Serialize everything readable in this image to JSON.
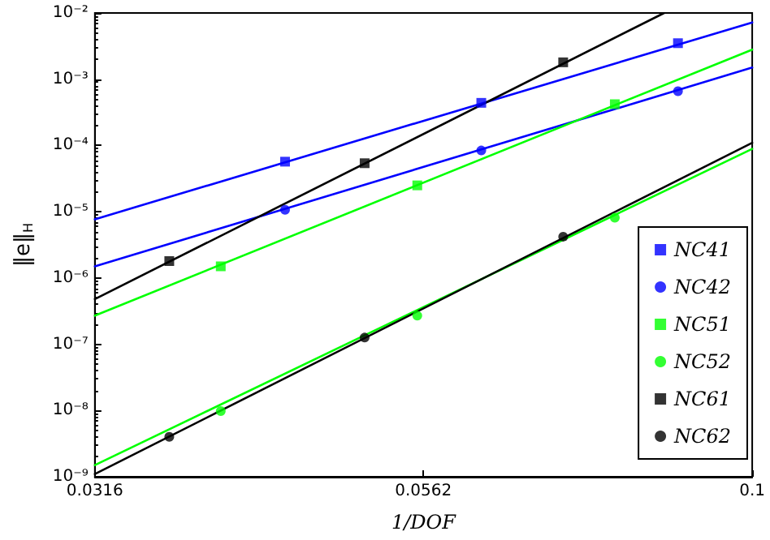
{
  "chart_data": {
    "type": "scatter",
    "xlabel": "1/DOF",
    "ylabel": "‖e‖$_{H}$",
    "log": "xy",
    "grid": false,
    "legend": "bottom right",
    "xlim": [
      0.0316,
      0.1
    ],
    "xticks": [
      0.0316,
      0.0562,
      0.1
    ],
    "ylim": [
      1e-09,
      0.01
    ],
    "yticks": [
      {
        "value": 1e-09,
        "label": "10⁻⁹"
      },
      {
        "value": 1e-08,
        "label": "10⁻⁸"
      },
      {
        "value": 1e-07,
        "label": "10⁻⁷"
      },
      {
        "value": 1e-06,
        "label": "10⁻⁶"
      },
      {
        "value": 1e-05,
        "label": "10⁻⁵"
      },
      {
        "value": 0.0001,
        "label": "10⁻⁴"
      },
      {
        "value": 0.001,
        "label": "10⁻³"
      },
      {
        "value": 0.01,
        "label": "10⁻²"
      }
    ],
    "series": [
      {
        "name": "NC41",
        "type": "scatter",
        "marker": "square",
        "color": "#0000ff",
        "x": [
          0.0441,
          0.0622,
          0.0878
        ],
        "values": [
          5.7e-05,
          0.00044,
          0.0035
        ]
      },
      {
        "name": "NC42",
        "type": "scatter",
        "marker": "circle",
        "color": "#0000ff",
        "x": [
          0.0441,
          0.0622,
          0.0878
        ],
        "values": [
          1.07e-05,
          8.4e-05,
          0.00066
        ]
      },
      {
        "name": "NC51",
        "type": "scatter",
        "marker": "square",
        "color": "#00ff00",
        "x": [
          0.0394,
          0.0556,
          0.0786
        ],
        "values": [
          1.5e-06,
          2.5e-05,
          0.00042
        ]
      },
      {
        "name": "NC52",
        "type": "scatter",
        "marker": "circle",
        "color": "#00ff00",
        "x": [
          0.0394,
          0.0556,
          0.0786
        ],
        "values": [
          9.8e-09,
          2.7e-07,
          8.1e-06
        ]
      },
      {
        "name": "NC61",
        "type": "scatter",
        "marker": "square",
        "color": "#000000",
        "x": [
          0.036,
          0.0507,
          0.0718
        ],
        "values": [
          1.8e-06,
          5.4e-05,
          0.0018
        ]
      },
      {
        "name": "NC62",
        "type": "scatter",
        "marker": "circle",
        "color": "#000000",
        "x": [
          0.036,
          0.0507,
          0.0718
        ],
        "values": [
          4e-09,
          1.26e-07,
          4.2e-06
        ]
      },
      {
        "type": "line",
        "marker": "none",
        "line_style": "solid",
        "color": "#0000ff",
        "x": [
          0.0316,
          0.1
        ],
        "values": [
          7.7e-06,
          0.0072
        ]
      },
      {
        "type": "line",
        "marker": "none",
        "line_style": "solid",
        "color": "#0000ff",
        "x": [
          0.0316,
          0.1
        ],
        "values": [
          1.5e-06,
          0.0015
        ]
      },
      {
        "type": "line",
        "marker": "none",
        "line_style": "solid",
        "color": "#00ff00",
        "x": [
          0.0316,
          0.1
        ],
        "values": [
          2.7e-07,
          0.0028
        ]
      },
      {
        "type": "line",
        "marker": "none",
        "line_style": "solid",
        "color": "#00ff00",
        "x": [
          0.0316,
          0.1
        ],
        "values": [
          1.5e-09,
          8.9e-05
        ]
      },
      {
        "type": "line",
        "marker": "none",
        "line_style": "solid",
        "color": "#000000",
        "x": [
          0.0316,
          0.0857
        ],
        "values": [
          4.8e-07,
          0.01
        ]
      },
      {
        "type": "line",
        "marker": "none",
        "line_style": "solid",
        "color": "#000000",
        "x": [
          0.0316,
          0.1
        ],
        "values": [
          1.1e-09,
          0.00011
        ]
      }
    ]
  }
}
